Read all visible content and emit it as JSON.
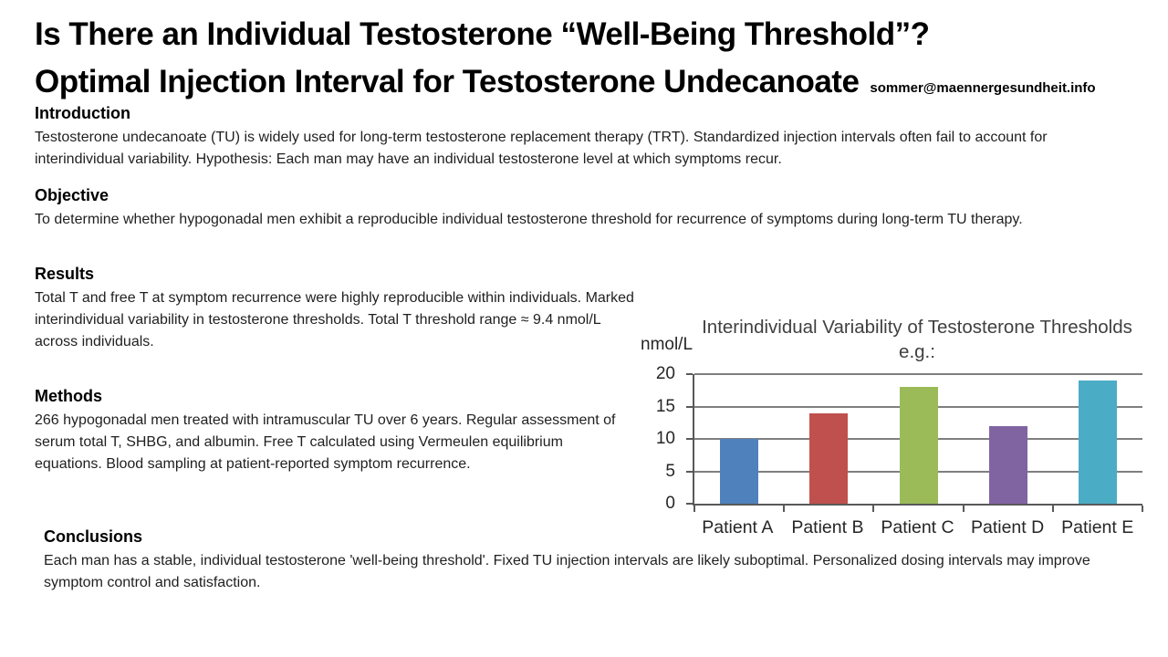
{
  "header": {
    "title_line1": "Is There an Individual Testosterone “Well-Being Threshold”?",
    "title_line2": "Optimal Injection Interval for Testosterone Undecanoate",
    "contact_email": "sommer@maennergesundheit.info"
  },
  "sections": {
    "introduction": {
      "heading": "Introduction",
      "body": "Testosterone undecanoate (TU) is widely used for long-term testosterone replacement therapy (TRT). Standardized injection intervals often fail to account for interindividual variability. Hypothesis: Each man may have an individual testosterone level at which symptoms recur."
    },
    "objective": {
      "heading": "Objective",
      "body": "To determine whether hypogonadal men exhibit a reproducible individual testosterone threshold for recurrence of symptoms during long-term TU therapy."
    },
    "results": {
      "heading": "Results",
      "body": "Total T and free T at symptom recurrence were highly reproducible within individuals. Marked interindividual variability in testosterone thresholds. Total T threshold range ≈ 9.4 nmol/L across individuals."
    },
    "methods": {
      "heading": "Methods",
      "body": "266 hypogonadal men treated with intramuscular TU over 6 years. Regular assessment of serum total T, SHBG, and albumin. Free T calculated using Vermeulen equilibrium equations. Blood sampling at patient-reported symptom recurrence."
    },
    "conclusions": {
      "heading": "Conclusions",
      "body": "Each man has a stable, individual testosterone 'well-being threshold'. Fixed TU injection intervals are likely suboptimal. Personalized dosing intervals may improve symptom control and satisfaction."
    }
  },
  "chart_data": {
    "type": "bar",
    "title": "Interindividual Variability of Testosterone Thresholds e.g.:",
    "xlabel": "",
    "ylabel": "nmol/L",
    "categories": [
      "Patient A",
      "Patient B",
      "Patient C",
      "Patient D",
      "Patient E"
    ],
    "values": [
      10,
      14,
      18,
      12,
      19
    ],
    "bar_colors": [
      "#4F81BD",
      "#C0504D",
      "#9BBB59",
      "#8064A2",
      "#4BACC6"
    ],
    "ylim": [
      0,
      20
    ],
    "yticks": [
      0,
      5,
      10,
      15,
      20
    ],
    "grid": true,
    "legend_position": "none",
    "gridline_color": "#7f7f7f",
    "axis_color": "#595959"
  }
}
